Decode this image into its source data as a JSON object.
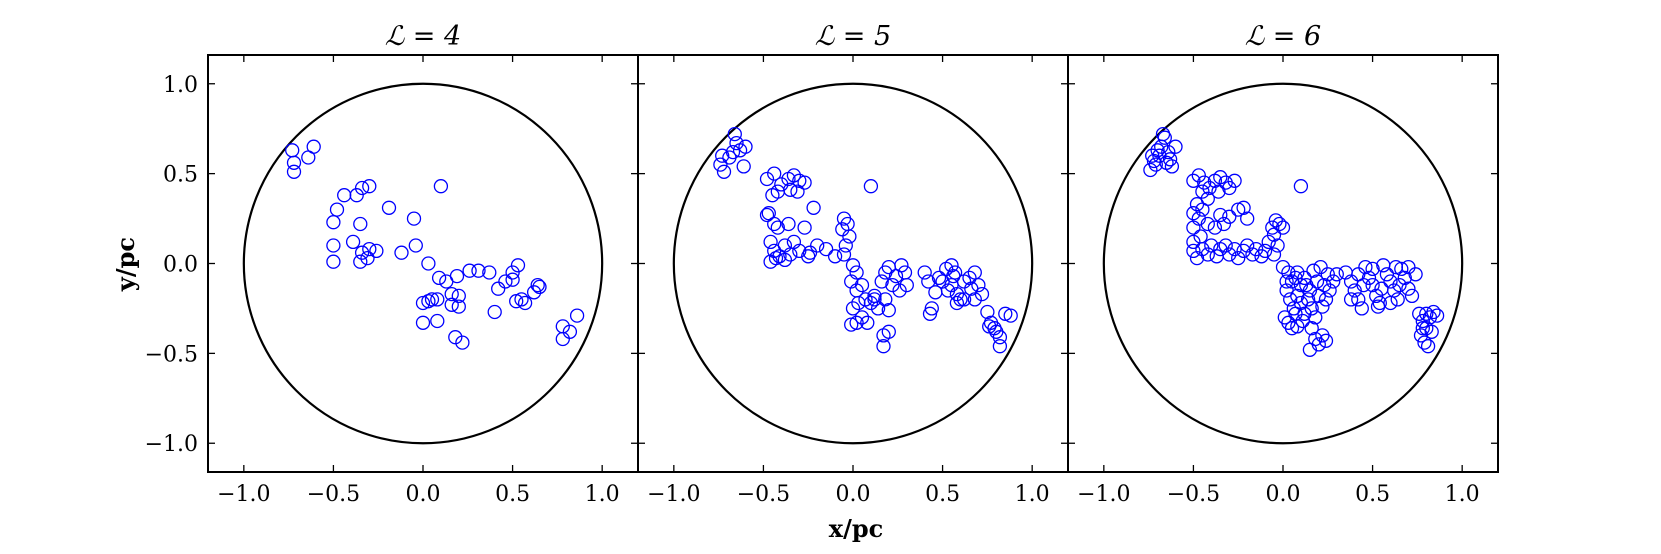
{
  "figure": {
    "xlabel": "x/pc",
    "ylabel": "y/pc",
    "marker_color": "#0000ff"
  },
  "chart_data": [
    {
      "type": "scatter",
      "title": "ℒ = 4",
      "xlim": [
        -1.2,
        1.2
      ],
      "ylim": [
        -1.16,
        1.16
      ],
      "xticks": [
        "−1.0",
        "−0.5",
        "0.0",
        "0.5",
        "1.0"
      ],
      "xtick_values": [
        -1.0,
        -0.5,
        0.0,
        0.5,
        1.0
      ],
      "yticks": [
        "−1.0",
        "−0.5",
        "0.0",
        "0.5",
        "1.0"
      ],
      "ytick_values": [
        -1.0,
        -0.5,
        0.0,
        0.5,
        1.0
      ],
      "boundary_radius": 1.0,
      "points": [
        [
          -0.73,
          0.63
        ],
        [
          -0.72,
          0.56
        ],
        [
          -0.72,
          0.51
        ],
        [
          -0.64,
          0.59
        ],
        [
          -0.61,
          0.65
        ],
        [
          -0.44,
          0.38
        ],
        [
          -0.37,
          0.38
        ],
        [
          -0.34,
          0.42
        ],
        [
          -0.3,
          0.43
        ],
        [
          -0.48,
          0.3
        ],
        [
          -0.5,
          0.23
        ],
        [
          -0.35,
          0.22
        ],
        [
          -0.5,
          0.1
        ],
        [
          -0.5,
          0.01
        ],
        [
          -0.39,
          0.12
        ],
        [
          -0.34,
          0.06
        ],
        [
          -0.35,
          0.01
        ],
        [
          -0.3,
          0.08
        ],
        [
          -0.31,
          0.03
        ],
        [
          -0.26,
          0.07
        ],
        [
          -0.19,
          0.31
        ],
        [
          -0.12,
          0.06
        ],
        [
          -0.05,
          0.25
        ],
        [
          -0.04,
          0.1
        ],
        [
          0.1,
          0.43
        ],
        [
          0.03,
          0.0
        ],
        [
          0.09,
          -0.08
        ],
        [
          0.13,
          -0.1
        ],
        [
          0.19,
          -0.07
        ],
        [
          0.26,
          -0.04
        ],
        [
          0.31,
          -0.04
        ],
        [
          0.37,
          -0.05
        ],
        [
          0.0,
          -0.22
        ],
        [
          0.03,
          -0.21
        ],
        [
          0.05,
          -0.2
        ],
        [
          0.08,
          -0.2
        ],
        [
          0.0,
          -0.33
        ],
        [
          0.08,
          -0.32
        ],
        [
          0.16,
          -0.17
        ],
        [
          0.2,
          -0.18
        ],
        [
          0.16,
          -0.23
        ],
        [
          0.2,
          -0.24
        ],
        [
          0.18,
          -0.41
        ],
        [
          0.22,
          -0.44
        ],
        [
          0.42,
          -0.14
        ],
        [
          0.46,
          -0.1
        ],
        [
          0.4,
          -0.27
        ],
        [
          0.5,
          -0.05
        ],
        [
          0.53,
          -0.01
        ],
        [
          0.5,
          -0.09
        ],
        [
          0.55,
          -0.2
        ],
        [
          0.57,
          -0.22
        ],
        [
          0.52,
          -0.21
        ],
        [
          0.64,
          -0.12
        ],
        [
          0.62,
          -0.16
        ],
        [
          0.65,
          -0.13
        ],
        [
          0.82,
          -0.38
        ],
        [
          0.78,
          -0.35
        ],
        [
          0.78,
          -0.42
        ],
        [
          0.86,
          -0.29
        ]
      ]
    },
    {
      "type": "scatter",
      "title": "ℒ = 5",
      "xlim": [
        -1.2,
        1.2
      ],
      "ylim": [
        -1.16,
        1.16
      ],
      "xticks": [
        "−1.0",
        "−0.5",
        "0.0",
        "0.5",
        "1.0"
      ],
      "xtick_values": [
        -1.0,
        -0.5,
        0.0,
        0.5,
        1.0
      ],
      "boundary_radius": 1.0,
      "points": [
        [
          -0.73,
          0.6
        ],
        [
          -0.74,
          0.55
        ],
        [
          -0.72,
          0.51
        ],
        [
          -0.69,
          0.59
        ],
        [
          -0.67,
          0.62
        ],
        [
          -0.65,
          0.67
        ],
        [
          -0.66,
          0.72
        ],
        [
          -0.63,
          0.63
        ],
        [
          -0.61,
          0.54
        ],
        [
          -0.6,
          0.65
        ],
        [
          -0.48,
          0.47
        ],
        [
          -0.44,
          0.5
        ],
        [
          -0.4,
          0.44
        ],
        [
          -0.42,
          0.4
        ],
        [
          -0.36,
          0.47
        ],
        [
          -0.33,
          0.49
        ],
        [
          -0.3,
          0.46
        ],
        [
          -0.27,
          0.45
        ],
        [
          -0.35,
          0.41
        ],
        [
          -0.45,
          0.38
        ],
        [
          -0.31,
          0.4
        ],
        [
          -0.47,
          0.28
        ],
        [
          -0.44,
          0.22
        ],
        [
          -0.48,
          0.27
        ],
        [
          -0.42,
          0.2
        ],
        [
          -0.36,
          0.22
        ],
        [
          -0.27,
          0.2
        ],
        [
          -0.22,
          0.31
        ],
        [
          -0.46,
          0.12
        ],
        [
          -0.44,
          0.07
        ],
        [
          -0.43,
          0.03
        ],
        [
          -0.38,
          0.1
        ],
        [
          -0.35,
          0.05
        ],
        [
          -0.3,
          0.07
        ],
        [
          -0.25,
          0.04
        ],
        [
          -0.2,
          0.1
        ],
        [
          -0.15,
          0.08
        ],
        [
          -0.1,
          0.04
        ],
        [
          -0.46,
          0.01
        ],
        [
          -0.41,
          0.04
        ],
        [
          -0.38,
          0.02
        ],
        [
          -0.33,
          0.12
        ],
        [
          -0.24,
          0.06
        ],
        [
          -0.05,
          0.05
        ],
        [
          -0.06,
          0.19
        ],
        [
          -0.03,
          0.22
        ],
        [
          -0.05,
          0.25
        ],
        [
          -0.02,
          0.15
        ],
        [
          -0.04,
          0.1
        ],
        [
          0.1,
          0.43
        ],
        [
          0.0,
          -0.01
        ],
        [
          0.02,
          -0.05
        ],
        [
          -0.01,
          -0.1
        ],
        [
          0.02,
          -0.15
        ],
        [
          0.05,
          -0.12
        ],
        [
          0.07,
          -0.2
        ],
        [
          0.03,
          -0.22
        ],
        [
          0.0,
          -0.25
        ],
        [
          0.05,
          -0.3
        ],
        [
          0.02,
          -0.33
        ],
        [
          -0.01,
          -0.34
        ],
        [
          0.08,
          -0.33
        ],
        [
          0.1,
          -0.22
        ],
        [
          0.12,
          -0.18
        ],
        [
          0.14,
          -0.25
        ],
        [
          0.16,
          -0.1
        ],
        [
          0.18,
          -0.05
        ],
        [
          0.2,
          -0.02
        ],
        [
          0.22,
          -0.12
        ],
        [
          0.24,
          -0.07
        ],
        [
          0.26,
          -0.15
        ],
        [
          0.27,
          -0.01
        ],
        [
          0.29,
          -0.05
        ],
        [
          0.3,
          -0.12
        ],
        [
          0.18,
          -0.2
        ],
        [
          0.2,
          -0.26
        ],
        [
          0.17,
          -0.4
        ],
        [
          0.2,
          -0.38
        ],
        [
          0.17,
          -0.46
        ],
        [
          0.12,
          -0.2
        ],
        [
          0.4,
          -0.05
        ],
        [
          0.42,
          -0.1
        ],
        [
          0.44,
          -0.25
        ],
        [
          0.43,
          -0.28
        ],
        [
          0.46,
          -0.16
        ],
        [
          0.48,
          -0.08
        ],
        [
          0.52,
          -0.03
        ],
        [
          0.55,
          -0.01
        ],
        [
          0.57,
          -0.05
        ],
        [
          0.55,
          -0.12
        ],
        [
          0.58,
          -0.17
        ],
        [
          0.6,
          -0.2
        ],
        [
          0.62,
          -0.1
        ],
        [
          0.65,
          -0.08
        ],
        [
          0.68,
          -0.05
        ],
        [
          0.7,
          -0.12
        ],
        [
          0.72,
          -0.17
        ],
        [
          0.62,
          -0.2
        ],
        [
          0.58,
          -0.22
        ],
        [
          0.53,
          -0.15
        ],
        [
          0.68,
          -0.2
        ],
        [
          0.66,
          -0.14
        ],
        [
          0.56,
          -0.07
        ],
        [
          0.5,
          -0.1
        ],
        [
          0.75,
          -0.27
        ],
        [
          0.77,
          -0.33
        ],
        [
          0.79,
          -0.36
        ],
        [
          0.8,
          -0.38
        ],
        [
          0.82,
          -0.41
        ],
        [
          0.82,
          -0.46
        ],
        [
          0.85,
          -0.28
        ],
        [
          0.88,
          -0.29
        ],
        [
          0.76,
          -0.35
        ]
      ]
    },
    {
      "type": "scatter",
      "title": "ℒ = 6",
      "xlim": [
        -1.2,
        1.2
      ],
      "ylim": [
        -1.16,
        1.16
      ],
      "xticks": [
        "−1.0",
        "−0.5",
        "0.0",
        "0.5",
        "1.0"
      ],
      "xtick_values": [
        -1.0,
        -0.5,
        0.0,
        0.5,
        1.0
      ],
      "boundary_radius": 1.0,
      "points": [
        [
          -0.72,
          0.57
        ],
        [
          -0.74,
          0.52
        ],
        [
          -0.71,
          0.55
        ],
        [
          -0.69,
          0.6
        ],
        [
          -0.68,
          0.65
        ],
        [
          -0.66,
          0.7
        ],
        [
          -0.67,
          0.72
        ],
        [
          -0.64,
          0.62
        ],
        [
          -0.63,
          0.58
        ],
        [
          -0.62,
          0.54
        ],
        [
          -0.65,
          0.56
        ],
        [
          -0.7,
          0.63
        ],
        [
          -0.6,
          0.65
        ],
        [
          -0.73,
          0.6
        ],
        [
          -0.5,
          0.46
        ],
        [
          -0.47,
          0.49
        ],
        [
          -0.44,
          0.45
        ],
        [
          -0.41,
          0.42
        ],
        [
          -0.38,
          0.46
        ],
        [
          -0.35,
          0.48
        ],
        [
          -0.32,
          0.45
        ],
        [
          -0.3,
          0.42
        ],
        [
          -0.27,
          0.46
        ],
        [
          -0.45,
          0.4
        ],
        [
          -0.42,
          0.36
        ],
        [
          -0.36,
          0.4
        ],
        [
          -0.48,
          0.33
        ],
        [
          -0.5,
          0.28
        ],
        [
          -0.47,
          0.25
        ],
        [
          -0.5,
          0.2
        ],
        [
          -0.46,
          0.15
        ],
        [
          -0.5,
          0.12
        ],
        [
          -0.45,
          0.3
        ],
        [
          -0.42,
          0.22
        ],
        [
          -0.38,
          0.2
        ],
        [
          -0.35,
          0.27
        ],
        [
          -0.33,
          0.22
        ],
        [
          -0.3,
          0.26
        ],
        [
          -0.25,
          0.3
        ],
        [
          -0.22,
          0.31
        ],
        [
          -0.2,
          0.25
        ],
        [
          -0.5,
          0.07
        ],
        [
          -0.48,
          0.03
        ],
        [
          -0.45,
          0.08
        ],
        [
          -0.42,
          0.05
        ],
        [
          -0.4,
          0.1
        ],
        [
          -0.37,
          0.04
        ],
        [
          -0.35,
          0.08
        ],
        [
          -0.32,
          0.1
        ],
        [
          -0.3,
          0.05
        ],
        [
          -0.27,
          0.08
        ],
        [
          -0.25,
          0.03
        ],
        [
          -0.22,
          0.07
        ],
        [
          -0.2,
          0.1
        ],
        [
          -0.17,
          0.05
        ],
        [
          -0.15,
          0.08
        ],
        [
          -0.12,
          0.04
        ],
        [
          -0.1,
          0.07
        ],
        [
          -0.08,
          0.12
        ],
        [
          -0.05,
          0.05
        ],
        [
          -0.03,
          0.1
        ],
        [
          -0.06,
          0.2
        ],
        [
          -0.04,
          0.24
        ],
        [
          -0.02,
          0.22
        ],
        [
          -0.05,
          0.16
        ],
        [
          0.0,
          0.2
        ],
        [
          0.1,
          0.43
        ],
        [
          0.0,
          -0.02
        ],
        [
          0.03,
          -0.05
        ],
        [
          0.05,
          -0.1
        ],
        [
          0.08,
          -0.05
        ],
        [
          0.1,
          -0.12
        ],
        [
          0.12,
          -0.08
        ],
        [
          0.15,
          -0.15
        ],
        [
          0.17,
          -0.04
        ],
        [
          0.19,
          -0.1
        ],
        [
          0.21,
          -0.02
        ],
        [
          0.23,
          -0.12
        ],
        [
          0.25,
          -0.06
        ],
        [
          0.02,
          -0.15
        ],
        [
          0.04,
          -0.2
        ],
        [
          0.06,
          -0.25
        ],
        [
          0.08,
          -0.18
        ],
        [
          0.1,
          -0.22
        ],
        [
          0.12,
          -0.28
        ],
        [
          0.14,
          -0.2
        ],
        [
          0.16,
          -0.25
        ],
        [
          0.18,
          -0.3
        ],
        [
          0.2,
          -0.18
        ],
        [
          0.22,
          -0.24
        ],
        [
          0.24,
          -0.2
        ],
        [
          0.26,
          -0.15
        ],
        [
          0.28,
          -0.1
        ],
        [
          0.3,
          -0.06
        ],
        [
          0.01,
          -0.3
        ],
        [
          0.03,
          -0.33
        ],
        [
          0.05,
          -0.36
        ],
        [
          0.08,
          -0.35
        ],
        [
          0.11,
          -0.32
        ],
        [
          0.07,
          -0.28
        ],
        [
          0.13,
          -0.12
        ],
        [
          0.07,
          -0.08
        ],
        [
          0.02,
          -0.1
        ],
        [
          0.18,
          -0.42
        ],
        [
          0.2,
          -0.45
        ],
        [
          0.22,
          -0.4
        ],
        [
          0.15,
          -0.48
        ],
        [
          0.24,
          -0.43
        ],
        [
          0.16,
          -0.36
        ],
        [
          0.35,
          -0.05
        ],
        [
          0.38,
          -0.1
        ],
        [
          0.4,
          -0.15
        ],
        [
          0.42,
          -0.2
        ],
        [
          0.44,
          -0.25
        ],
        [
          0.46,
          -0.02
        ],
        [
          0.48,
          -0.08
        ],
        [
          0.5,
          -0.12
        ],
        [
          0.52,
          -0.18
        ],
        [
          0.54,
          -0.22
        ],
        [
          0.56,
          -0.01
        ],
        [
          0.58,
          -0.06
        ],
        [
          0.6,
          -0.1
        ],
        [
          0.62,
          -0.15
        ],
        [
          0.64,
          -0.2
        ],
        [
          0.66,
          -0.03
        ],
        [
          0.68,
          -0.08
        ],
        [
          0.7,
          -0.14
        ],
        [
          0.72,
          -0.18
        ],
        [
          0.74,
          -0.06
        ],
        [
          0.5,
          -0.03
        ],
        [
          0.55,
          -0.14
        ],
        [
          0.6,
          -0.22
        ],
        [
          0.65,
          -0.12
        ],
        [
          0.45,
          -0.12
        ],
        [
          0.38,
          -0.2
        ],
        [
          0.42,
          -0.06
        ],
        [
          0.63,
          -0.02
        ],
        [
          0.7,
          -0.02
        ],
        [
          0.53,
          -0.24
        ],
        [
          0.76,
          -0.28
        ],
        [
          0.78,
          -0.32
        ],
        [
          0.8,
          -0.36
        ],
        [
          0.77,
          -0.4
        ],
        [
          0.79,
          -0.44
        ],
        [
          0.82,
          -0.3
        ],
        [
          0.84,
          -0.27
        ],
        [
          0.86,
          -0.29
        ],
        [
          0.81,
          -0.46
        ],
        [
          0.83,
          -0.38
        ],
        [
          0.78,
          -0.36
        ],
        [
          0.8,
          -0.28
        ]
      ]
    }
  ]
}
